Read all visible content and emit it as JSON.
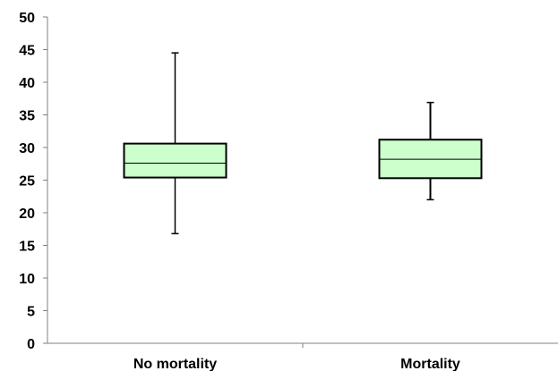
{
  "chart_data": {
    "type": "box",
    "categories": [
      "No mortality",
      "Mortality"
    ],
    "series": [
      {
        "category": "No mortality",
        "min": 16.8,
        "q1": 25.4,
        "median": 27.6,
        "q3": 30.6,
        "max": 44.5
      },
      {
        "category": "Mortality",
        "min": 22.0,
        "q1": 25.3,
        "median": 28.2,
        "q3": 31.2,
        "max": 36.9
      }
    ],
    "yticks": [
      "0",
      "5",
      "10",
      "15",
      "20",
      "25",
      "30",
      "35",
      "40",
      "45",
      "50"
    ],
    "ylim": [
      0,
      50
    ],
    "box_fill": "#ccffcc",
    "grid": false,
    "legend": "none"
  }
}
